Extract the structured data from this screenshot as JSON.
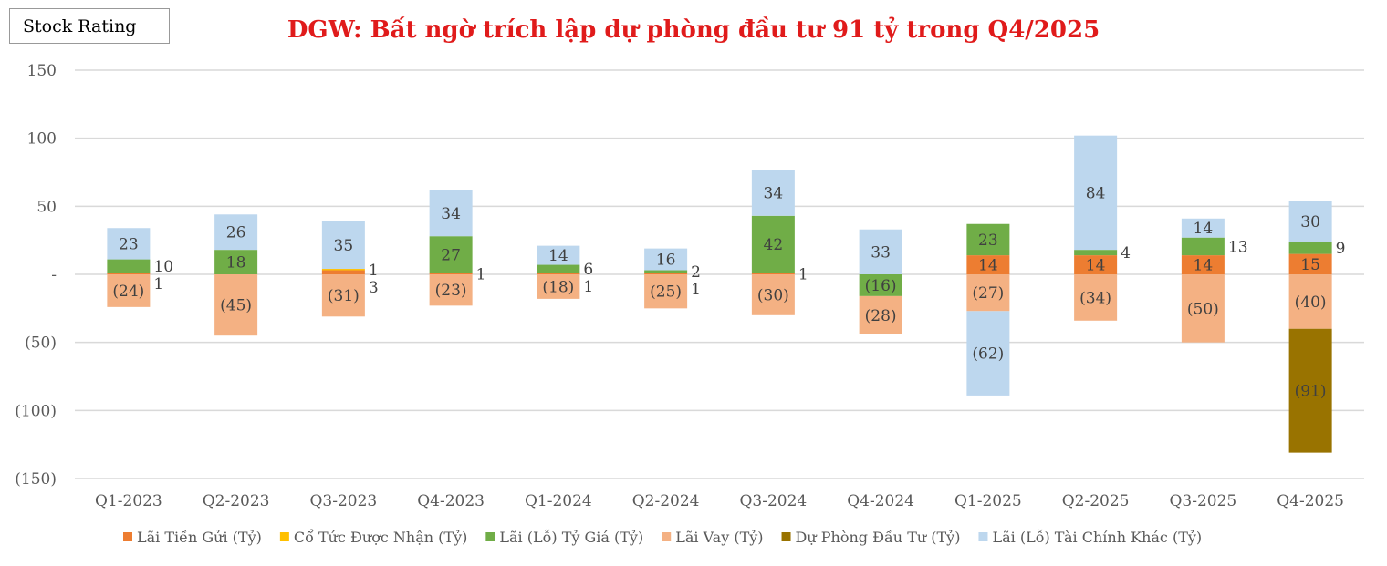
{
  "stock_rating_label": "Stock Rating",
  "chart_data": {
    "type": "bar",
    "stacked": true,
    "title": "DGW: Bất ngờ trích lập dự phòng đầu tư 91 tỷ trong Q4/2025",
    "xlabel": "",
    "ylabel": "",
    "ylim": [
      -150,
      150
    ],
    "yticks": [
      150,
      100,
      50,
      0,
      -50,
      -100,
      -150
    ],
    "ytick_labels": [
      "150",
      "100",
      "50",
      "-",
      "(50)",
      "(100)",
      "(150)"
    ],
    "grid": true,
    "legend_position": "bottom",
    "categories": [
      "Q1-2023",
      "Q2-2023",
      "Q3-2023",
      "Q4-2023",
      "Q1-2024",
      "Q2-2024",
      "Q3-2024",
      "Q4-2024",
      "Q1-2025",
      "Q2-2025",
      "Q3-2025",
      "Q4-2025"
    ],
    "series": [
      {
        "name": "Lãi Tiền Gửi (Tỷ)",
        "color": "#ed7d31",
        "values": [
          1,
          0,
          3,
          1,
          1,
          1,
          1,
          0,
          14,
          14,
          14,
          15
        ]
      },
      {
        "name": "Cổ Tức Được Nhận (Tỷ)",
        "color": "#ffc000",
        "values": [
          0,
          0,
          1,
          0,
          0,
          0,
          0,
          0,
          0,
          0,
          0,
          0
        ]
      },
      {
        "name": "Lãi (Lỗ) Tỷ Giá (Tỷ)",
        "color": "#70ad47",
        "values": [
          10,
          18,
          0,
          27,
          6,
          2,
          42,
          -16,
          23,
          4,
          13,
          9
        ]
      },
      {
        "name": "Lãi Vay (Tỷ)",
        "color": "#f4b183",
        "values": [
          -24,
          -45,
          -31,
          -23,
          -18,
          -25,
          -30,
          -28,
          -27,
          -34,
          -50,
          -40
        ]
      },
      {
        "name": "Dự Phòng Đầu Tư (Tỷ)",
        "color": "#997300",
        "values": [
          0,
          0,
          0,
          0,
          0,
          0,
          0,
          0,
          0,
          0,
          0,
          -91
        ]
      },
      {
        "name": "Lãi (Lỗ) Tài Chính Khác (Tỷ)",
        "color": "#bdd7ee",
        "values": [
          23,
          26,
          35,
          34,
          14,
          16,
          34,
          33,
          -62,
          84,
          14,
          30
        ]
      }
    ]
  }
}
